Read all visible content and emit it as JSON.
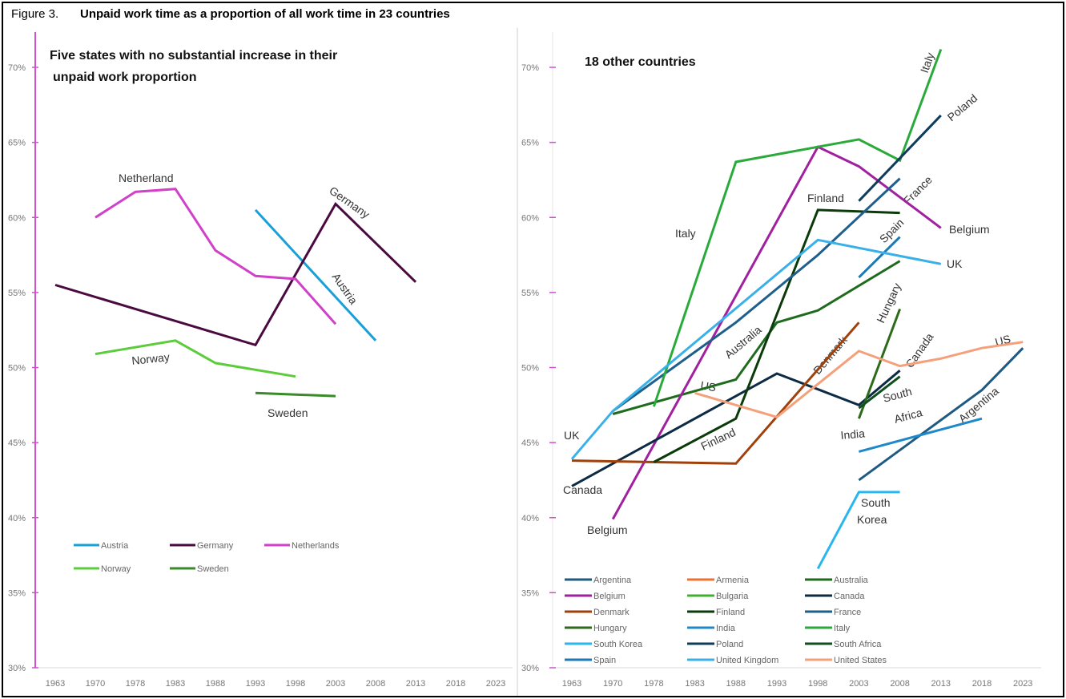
{
  "figure_label": "Figure 3.",
  "figure_title": "Unpaid work time as a proportion of all work time in 23 countries",
  "chart_data": [
    {
      "type": "line",
      "title": "Five states with no substantial increase in their",
      "title_line2": "unpaid work proportion",
      "xlabel": "",
      "ylabel": "",
      "categories": [
        "1963",
        "1970",
        "1978",
        "1983",
        "1988",
        "1993",
        "1998",
        "2003",
        "2008",
        "2013",
        "2018",
        "2023"
      ],
      "y_ticks": [
        "30%",
        "35%",
        "40%",
        "45%",
        "50%",
        "55%",
        "60%",
        "65%",
        "70%"
      ],
      "ylim": [
        30,
        70
      ],
      "grid": false,
      "legend_position": "bottom-left",
      "series": [
        {
          "name": "Austria",
          "color": "#1aa0d8",
          "points": [
            [
              "1993",
              60.5
            ],
            [
              "2008",
              51.8
            ]
          ]
        },
        {
          "name": "Germany",
          "color": "#4a0a3f",
          "points": [
            [
              "1963",
              55.5
            ],
            [
              "1993",
              51.5
            ],
            [
              "2003",
              60.9
            ],
            [
              "2013",
              55.7
            ]
          ]
        },
        {
          "name": "Netherlands",
          "color": "#d040c8",
          "points": [
            [
              "1970",
              60.0
            ],
            [
              "1978",
              61.7
            ],
            [
              "1983",
              61.9
            ],
            [
              "1988",
              57.8
            ],
            [
              "1993",
              56.1
            ],
            [
              "1998",
              55.9
            ],
            [
              "2003",
              52.9
            ]
          ]
        },
        {
          "name": "Norway",
          "color": "#5ccc3c",
          "points": [
            [
              "1970",
              50.9
            ],
            [
              "1983",
              51.8
            ],
            [
              "1988",
              50.3
            ],
            [
              "1998",
              49.4
            ]
          ]
        },
        {
          "name": "Sweden",
          "color": "#3a8a2a",
          "points": [
            [
              "1993",
              48.3
            ],
            [
              "2003",
              48.1
            ]
          ]
        }
      ],
      "annotations": [
        "Netherland",
        "Germany",
        "Austria",
        "Norway",
        "Sweden"
      ]
    },
    {
      "type": "line",
      "title": "18 other countries",
      "xlabel": "",
      "ylabel": "",
      "categories": [
        "1963",
        "1970",
        "1978",
        "1983",
        "1988",
        "1993",
        "1998",
        "2003",
        "2008",
        "2013",
        "2018",
        "2023"
      ],
      "y_ticks": [
        "30%",
        "35%",
        "40%",
        "45%",
        "50%",
        "55%",
        "60%",
        "65%",
        "70%"
      ],
      "ylim": [
        30,
        70
      ],
      "grid": false,
      "legend_position": "bottom",
      "series": [
        {
          "name": "Argentina",
          "color": "#1e5a82",
          "points": [
            [
              "2003",
              42.5
            ],
            [
              "2018",
              48.5
            ],
            [
              "2023",
              51.3
            ]
          ]
        },
        {
          "name": "Armenia",
          "color": "#f07030",
          "points": []
        },
        {
          "name": "Australia",
          "color": "#1e6b1e",
          "points": [
            [
              "1970",
              46.9
            ],
            [
              "1988",
              49.2
            ],
            [
              "1993",
              53.0
            ],
            [
              "1998",
              53.8
            ],
            [
              "2008",
              57.1
            ]
          ]
        },
        {
          "name": "Belgium",
          "color": "#a020a0",
          "points": [
            [
              "1970",
              39.9
            ],
            [
              "1998",
              64.7
            ],
            [
              "2003",
              63.4
            ],
            [
              "2013",
              59.3
            ]
          ]
        },
        {
          "name": "Bulgaria",
          "color": "#40b030",
          "points": []
        },
        {
          "name": "Canada",
          "color": "#0d2b45",
          "points": [
            [
              "1963",
              42.1
            ],
            [
              "1993",
              49.6
            ],
            [
              "2003",
              47.5
            ],
            [
              "2008",
              49.8
            ]
          ]
        },
        {
          "name": "Denmark",
          "color": "#a0400a",
          "points": [
            [
              "1963",
              43.8
            ],
            [
              "1988",
              43.6
            ],
            [
              "2003",
              53.0
            ]
          ]
        },
        {
          "name": "Finland",
          "color": "#0b3a0b",
          "points": [
            [
              "1978",
              43.7
            ],
            [
              "1988",
              46.6
            ],
            [
              "1998",
              60.5
            ],
            [
              "2008",
              60.3
            ]
          ]
        },
        {
          "name": "France",
          "color": "#1f5f8b",
          "points": [
            [
              "1970",
              47.1
            ],
            [
              "1988",
              53.0
            ],
            [
              "1998",
              57.5
            ],
            [
              "2008",
              62.6
            ]
          ]
        },
        {
          "name": "Hungary",
          "color": "#2d6a1a",
          "points": [
            [
              "2003",
              46.6
            ],
            [
              "2008",
              53.9
            ]
          ]
        },
        {
          "name": "India",
          "color": "#1f88c8",
          "points": [
            [
              "2003",
              44.4
            ],
            [
              "2018",
              46.6
            ]
          ]
        },
        {
          "name": "Italy",
          "color": "#2aaa3a",
          "points": [
            [
              "1978",
              47.4
            ],
            [
              "1988",
              63.7
            ],
            [
              "1998",
              64.7
            ],
            [
              "2003",
              65.2
            ],
            [
              "2008",
              63.8
            ],
            [
              "2013",
              71.2
            ]
          ]
        },
        {
          "name": "South Korea",
          "color": "#29b6ef",
          "points": [
            [
              "1998",
              36.6
            ],
            [
              "2003",
              41.7
            ],
            [
              "2008",
              41.7
            ]
          ]
        },
        {
          "name": "Poland",
          "color": "#0e3c5c",
          "points": [
            [
              "2003",
              61.1
            ],
            [
              "2013",
              66.8
            ]
          ]
        },
        {
          "name": "South Africa",
          "color": "#0f4f1f",
          "points": [
            [
              "2003",
              47.3
            ],
            [
              "2008",
              49.4
            ]
          ]
        },
        {
          "name": "Spain",
          "color": "#1a7ab8",
          "points": [
            [
              "2003",
              56.0
            ],
            [
              "2008",
              58.7
            ]
          ]
        },
        {
          "name": "United Kingdom",
          "color": "#3ab0e8",
          "points": [
            [
              "1963",
              43.9
            ],
            [
              "1970",
              47.1
            ],
            [
              "1998",
              58.5
            ],
            [
              "2013",
              56.9
            ]
          ]
        },
        {
          "name": "United States",
          "color": "#f4a07a",
          "points": [
            [
              "1983",
              48.3
            ],
            [
              "1993",
              46.7
            ],
            [
              "2003",
              51.1
            ],
            [
              "2008",
              50.1
            ],
            [
              "2013",
              50.6
            ],
            [
              "2018",
              51.3
            ],
            [
              "2023",
              51.7
            ]
          ]
        }
      ],
      "annotations": [
        "Italy",
        "Poland",
        "France",
        "Belgium",
        "Finland",
        "Italy",
        "Spain",
        "UK",
        "Hungary",
        "Australia",
        "Denmark",
        "Canada",
        "US",
        "US",
        "South",
        "Africa",
        "Argentina",
        "India",
        "UK",
        "Finland",
        "Canada",
        "South",
        "Korea",
        "Belgium"
      ]
    }
  ]
}
